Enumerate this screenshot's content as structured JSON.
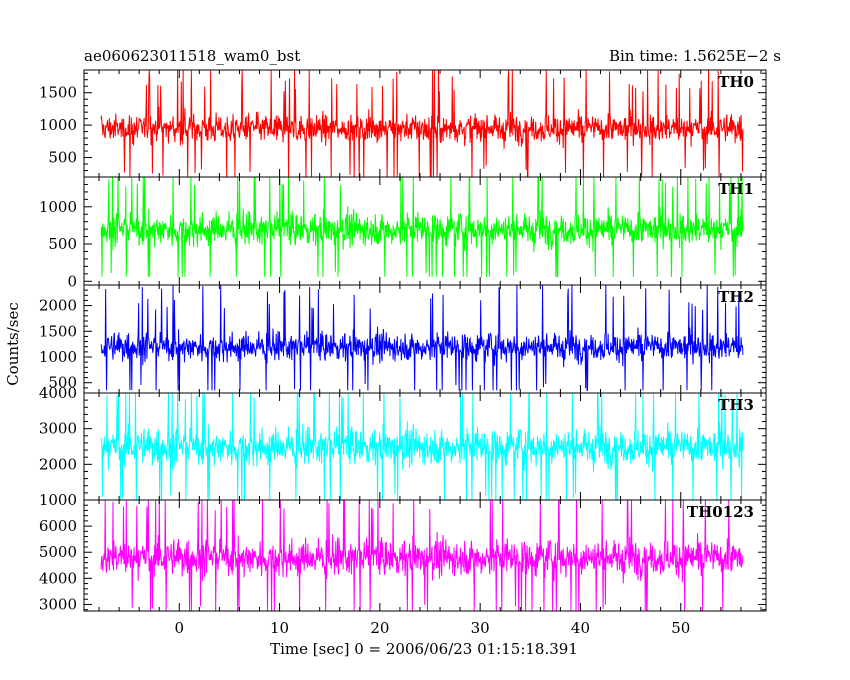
{
  "chart_data": {
    "type": "line",
    "title_left": "ae060623011518_wam0_bst",
    "title_right": "Bin time: 1.5625E−2 s",
    "xlabel": "Time [sec] 0 = 2006/06/23 01:15:18.391",
    "ylabel": "Counts/sec",
    "xlim": [
      -9.5,
      58.5
    ],
    "x_range_data": [
      -7.8,
      56.2
    ],
    "x_ticks": [
      0,
      10,
      20,
      30,
      40,
      50
    ],
    "x_tick_labels": [
      "0",
      "10",
      "20",
      "30",
      "40",
      "50"
    ],
    "grid": false,
    "panels": [
      {
        "name": "TH0",
        "color": "#ff0000",
        "ylim": [
          200,
          1850
        ],
        "y_ticks": [
          500,
          1000,
          1500
        ],
        "y_tick_labels": [
          "500",
          "1000",
          "1500"
        ],
        "mean": 950,
        "dense_low": 450,
        "dense_high": 1400,
        "min": 180,
        "max": 1850
      },
      {
        "name": "TH1",
        "color": "#00ff00",
        "ylim": [
          -50,
          1400
        ],
        "y_ticks": [
          0,
          500,
          1000
        ],
        "y_tick_labels": [
          "0",
          "500",
          "1000"
        ],
        "mean": 700,
        "dense_low": 200,
        "dense_high": 1150,
        "min": 60,
        "max": 1400
      },
      {
        "name": "TH2",
        "color": "#0000ff",
        "ylim": [
          300,
          2400
        ],
        "y_ticks": [
          500,
          1000,
          1500,
          2000
        ],
        "y_tick_labels": [
          "500",
          "1000",
          "1500",
          "2000"
        ],
        "mean": 1200,
        "dense_low": 600,
        "dense_high": 1800,
        "min": 350,
        "max": 2400
      },
      {
        "name": "TH3",
        "color": "#00ffff",
        "ylim": [
          1000,
          4000
        ],
        "y_ticks": [
          1000,
          2000,
          3000,
          4000
        ],
        "y_tick_labels": [
          "1000",
          "2000",
          "3000",
          "4000"
        ],
        "mean": 2500,
        "dense_low": 1300,
        "dense_high": 3500,
        "min": 1000,
        "max": 4000
      },
      {
        "name": "TH0123",
        "color": "#ff00ff",
        "ylim": [
          2750,
          7000
        ],
        "y_ticks": [
          3000,
          4000,
          5000,
          6000
        ],
        "y_tick_labels": [
          "3000",
          "4000",
          "5000",
          "6000"
        ],
        "mean": 4800,
        "dense_low": 3300,
        "dense_high": 6300,
        "min": 2750,
        "max": 7000
      }
    ]
  }
}
